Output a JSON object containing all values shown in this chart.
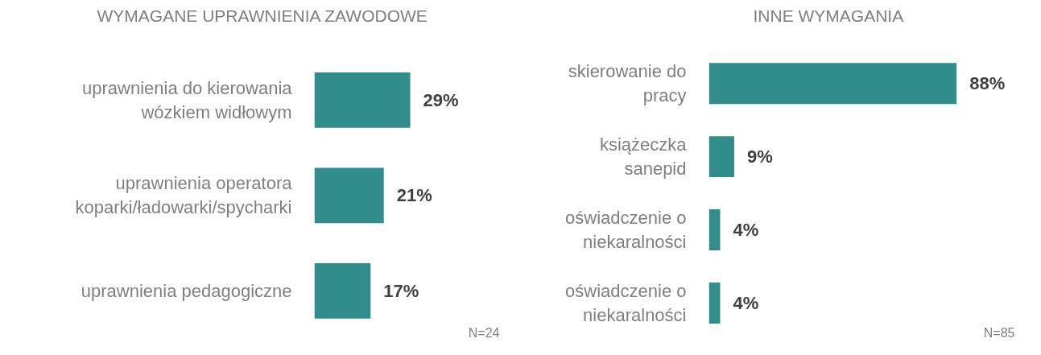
{
  "chart_data": [
    {
      "type": "bar",
      "orientation": "horizontal",
      "title": "WYMAGANE UPRAWNIENIA ZAWODOWE",
      "categories": [
        "uprawnienia do kierowania\nwózkiem widłowym",
        "uprawnienia operatora\nkoparki/ładowarki/spycharki",
        "uprawnienia pedagogiczne"
      ],
      "values": [
        29,
        21,
        17
      ],
      "value_labels": [
        "29%",
        "21%",
        "17%"
      ],
      "color": "#318c8c",
      "tick_labels": "y",
      "grid": false,
      "annotations": [
        "N=24"
      ]
    },
    {
      "type": "bar",
      "orientation": "horizontal",
      "title": "INNE WYMAGANIA",
      "categories": [
        "skierowanie do\npracy",
        "książeczka\nsanepid",
        "oświadczenie o\nniekaralności",
        "oświadczenie o\nniekaralności"
      ],
      "values": [
        88,
        9,
        4,
        4
      ],
      "value_labels": [
        "88%",
        "9%",
        "4%",
        "4%"
      ],
      "color": "#318c8c",
      "tick_labels": "y",
      "grid": false,
      "annotations": [
        "N=85"
      ]
    }
  ]
}
